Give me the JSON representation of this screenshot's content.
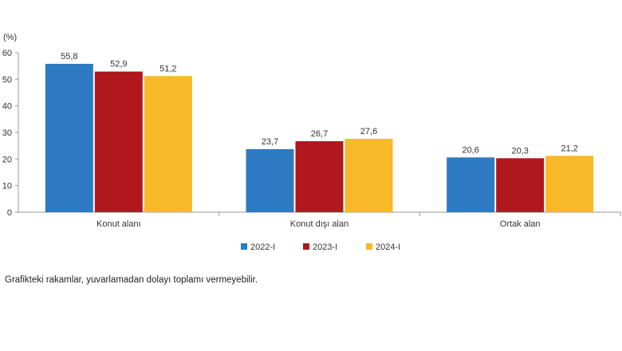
{
  "chart_data": {
    "type": "bar",
    "unit_label": "(%)",
    "categories": [
      "Konut alanı",
      "Konut dışı alan",
      "Ortak alan"
    ],
    "series": [
      {
        "name": "2022-I",
        "color": "#2e7ac2",
        "values": [
          55.8,
          23.7,
          20.6
        ],
        "labels": [
          "55,8",
          "23,7",
          "20,6"
        ]
      },
      {
        "name": "2023-I",
        "color": "#b0181d",
        "values": [
          52.9,
          26.7,
          20.3
        ],
        "labels": [
          "52,9",
          "26,7",
          "20,3"
        ]
      },
      {
        "name": "2024-I",
        "color": "#f7b928",
        "values": [
          51.2,
          27.6,
          21.2
        ],
        "labels": [
          "51,2",
          "27,6",
          "21,2"
        ]
      }
    ],
    "ylim": [
      0,
      60
    ],
    "yticks": [
      0,
      10,
      20,
      30,
      40,
      50,
      60
    ],
    "grid": false,
    "legend_position": "bottom"
  },
  "footnote": "Grafikteki rakamlar, yuvarlamadan dolayı toplamı vermeyebilir."
}
